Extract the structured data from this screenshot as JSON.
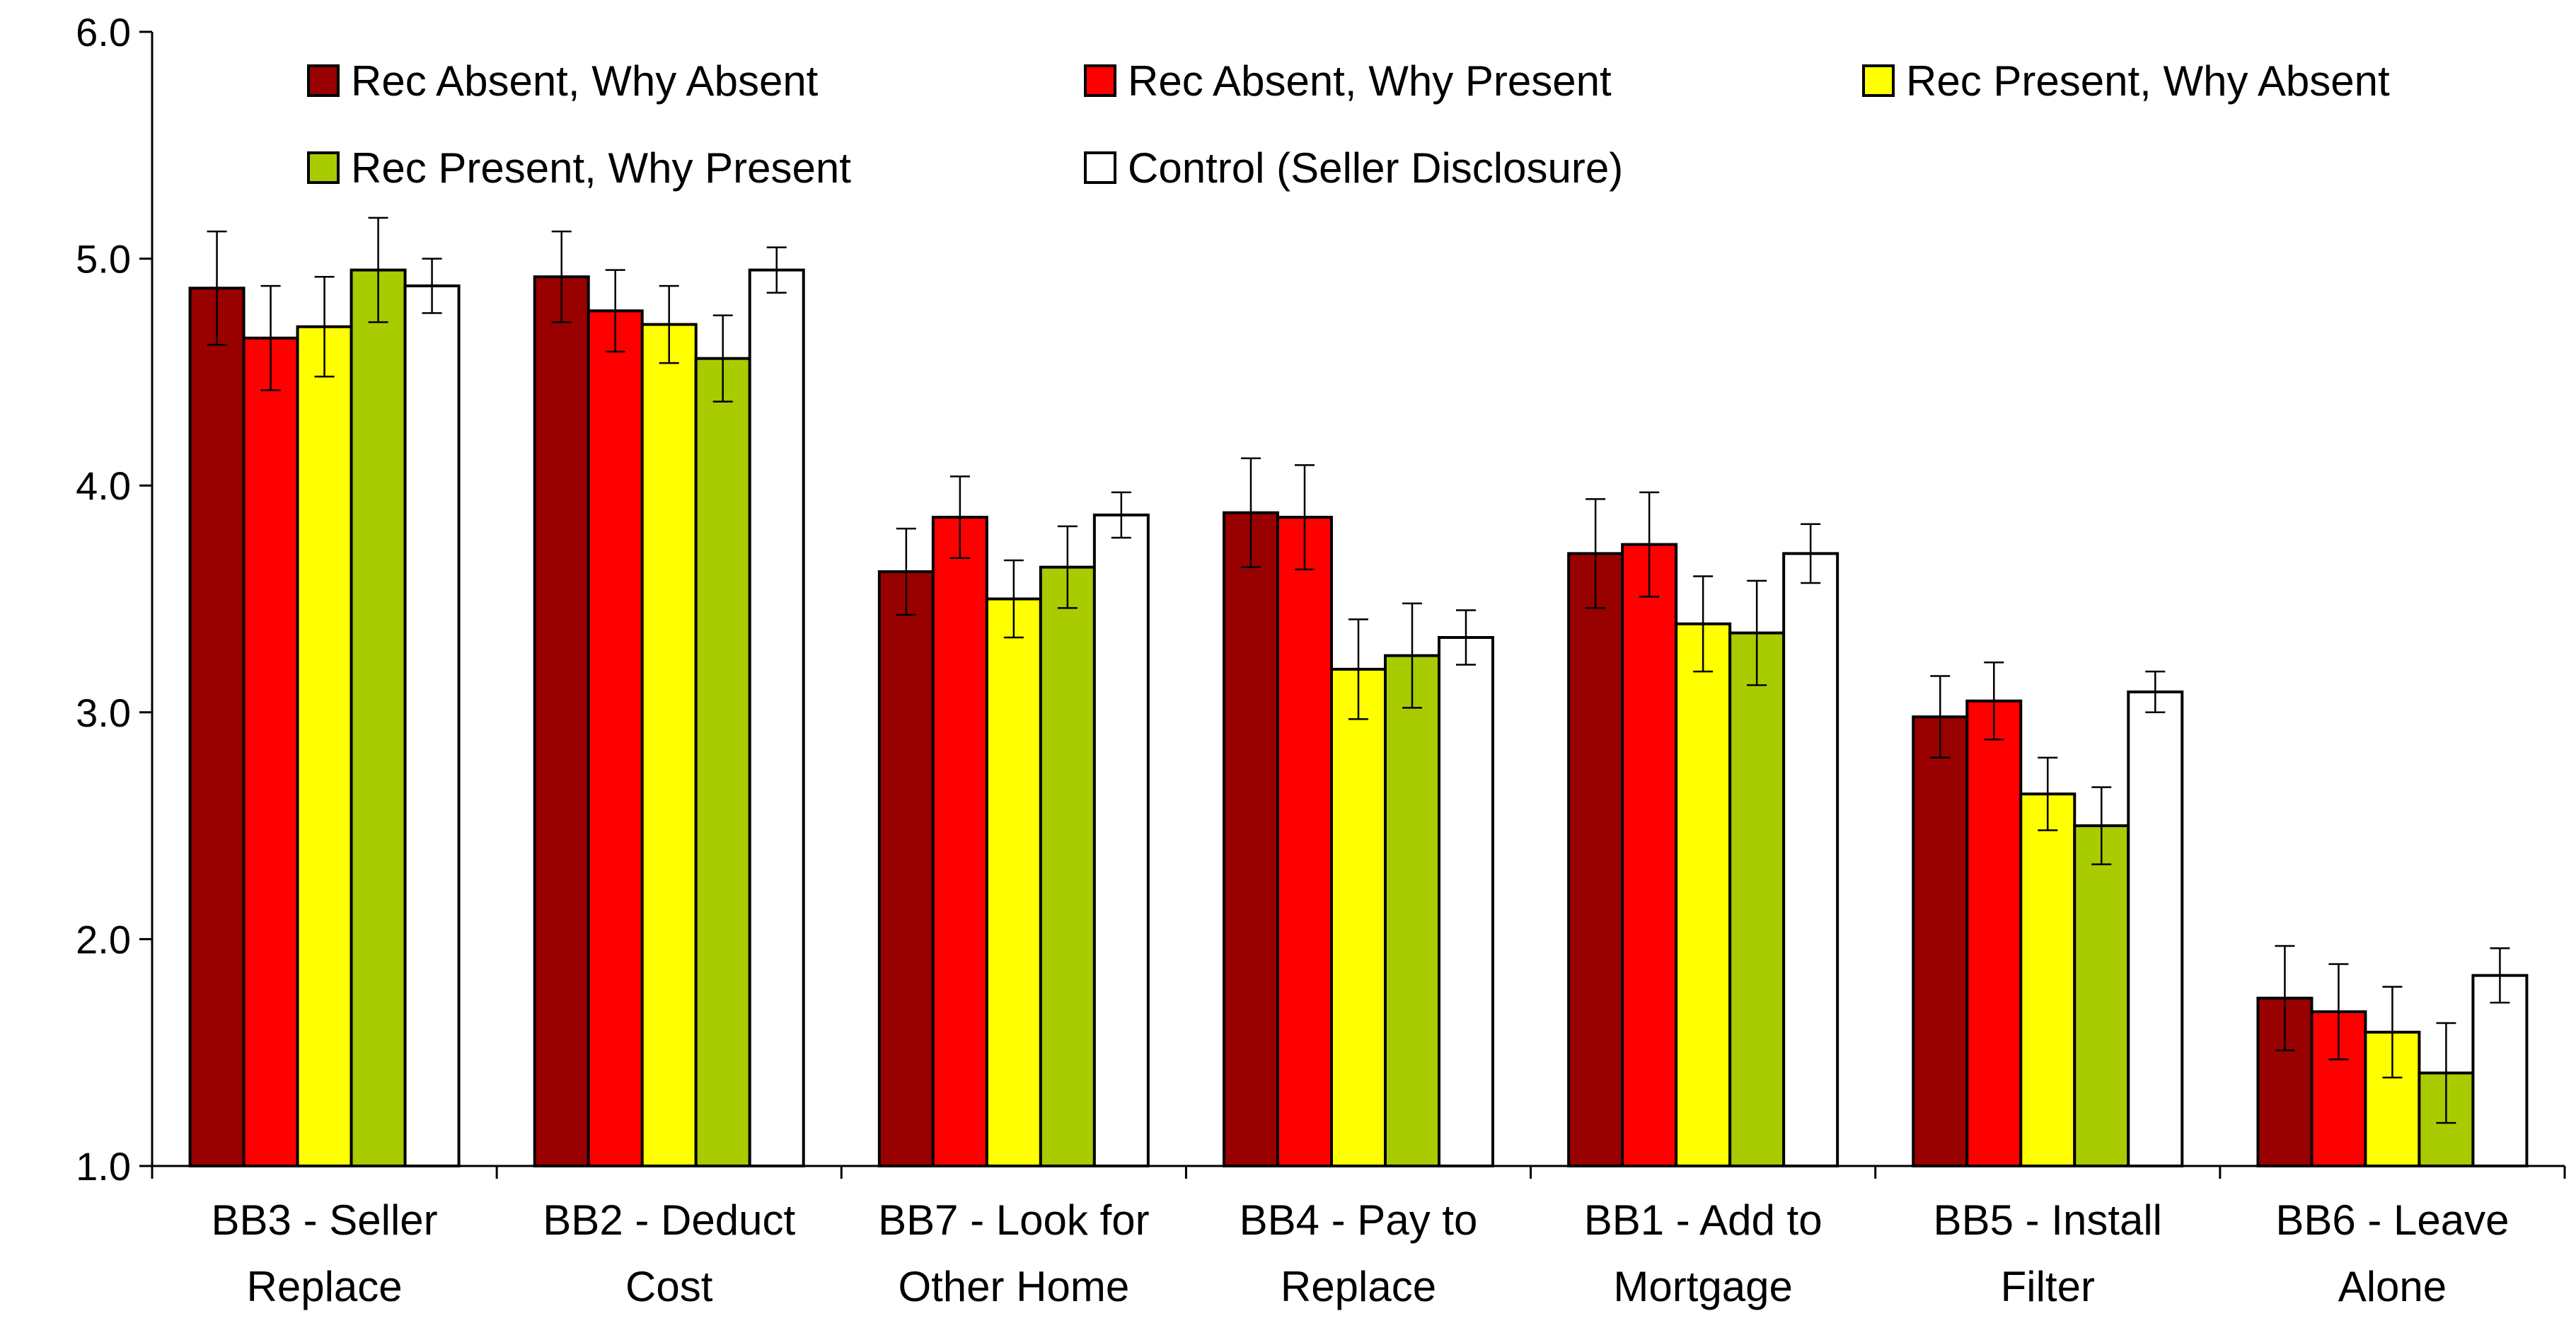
{
  "chart_data": {
    "type": "bar",
    "title": "",
    "xlabel": "",
    "ylabel": "",
    "ylim": [
      1.0,
      6.0
    ],
    "yticks": [
      "1.0",
      "2.0",
      "3.0",
      "4.0",
      "5.0",
      "6.0"
    ],
    "grid": false,
    "legend_position": "top",
    "categories": [
      [
        "BB3 - Seller",
        "Replace"
      ],
      [
        "BB2 - Deduct",
        "Cost"
      ],
      [
        "BB7 - Look for",
        "Other Home"
      ],
      [
        "BB4 - Pay to",
        "Replace"
      ],
      [
        "BB1 - Add to",
        "Mortgage"
      ],
      [
        "BB5 - Install",
        "Filter"
      ],
      [
        "BB6 - Leave",
        "Alone"
      ]
    ],
    "series": [
      {
        "name": "Rec Absent, Why Absent",
        "color": "#990000",
        "values": [
          4.87,
          4.92,
          3.62,
          3.88,
          3.7,
          2.98,
          1.74
        ],
        "error": [
          0.25,
          0.2,
          0.19,
          0.24,
          0.24,
          0.18,
          0.23
        ]
      },
      {
        "name": "Rec Absent, Why Present",
        "color": "#FF0000",
        "values": [
          4.65,
          4.77,
          3.86,
          3.86,
          3.74,
          3.05,
          1.68
        ],
        "error": [
          0.23,
          0.18,
          0.18,
          0.23,
          0.23,
          0.17,
          0.21
        ]
      },
      {
        "name": "Rec Present, Why Absent",
        "color": "#FFFF00",
        "values": [
          4.7,
          4.71,
          3.5,
          3.19,
          3.39,
          2.64,
          1.59
        ],
        "error": [
          0.22,
          0.17,
          0.17,
          0.22,
          0.21,
          0.16,
          0.2
        ]
      },
      {
        "name": "Rec Present, Why Present",
        "color": "#A8CC00",
        "values": [
          4.95,
          4.56,
          3.64,
          3.25,
          3.35,
          2.5,
          1.41
        ],
        "error": [
          0.23,
          0.19,
          0.18,
          0.23,
          0.23,
          0.17,
          0.22
        ]
      },
      {
        "name": "Control (Seller Disclosure)",
        "color": "#FFFFFF",
        "values": [
          4.88,
          4.95,
          3.87,
          3.33,
          3.7,
          3.09,
          1.84
        ],
        "error": [
          0.12,
          0.1,
          0.1,
          0.12,
          0.13,
          0.09,
          0.12
        ]
      }
    ]
  }
}
